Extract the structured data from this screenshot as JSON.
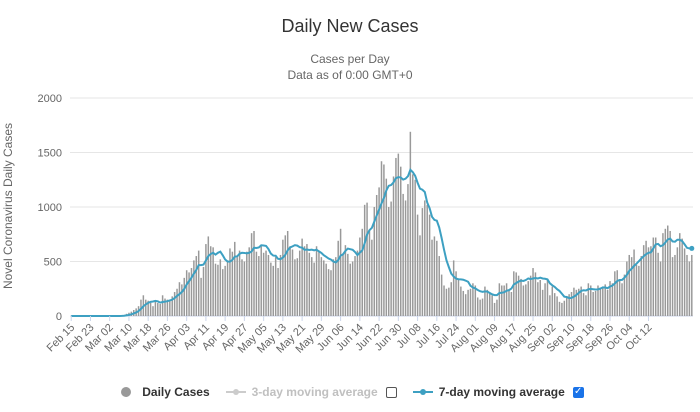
{
  "chart_data": {
    "type": "bar",
    "title": "Daily New Cases",
    "subtitle_line1": "Cases per Day",
    "subtitle_line2": "Data as of 0:00 GMT+0",
    "ylabel": "Novel Coronavirus Daily Cases",
    "xlabel": "",
    "ylim": [
      0,
      2000
    ],
    "yticks": [
      0,
      500,
      1000,
      1500,
      2000
    ],
    "start_date": "Feb 15",
    "x_ticks": [
      "Feb 15",
      "Feb 23",
      "Mar 02",
      "Mar 10",
      "Mar 18",
      "Mar 26",
      "Apr 03",
      "Apr 11",
      "Apr 19",
      "Apr 27",
      "May 05",
      "May 13",
      "May 21",
      "May 29",
      "Jun 06",
      "Jun 14",
      "Jun 22",
      "Jun 30",
      "Jul 08",
      "Jul 16",
      "Jul 24",
      "Aug 01",
      "Aug 09",
      "Aug 17",
      "Aug 25",
      "Sep 02",
      "Sep 10",
      "Sep 18",
      "Sep 26",
      "Oct 04",
      "Oct 12"
    ],
    "series": [
      {
        "name": "Daily Cases",
        "color": "#999999",
        "values": [
          0,
          0,
          0,
          0,
          0,
          0,
          0,
          0,
          0,
          0,
          0,
          0,
          0,
          0,
          0,
          0,
          0,
          0,
          0,
          1,
          2,
          5,
          10,
          20,
          30,
          40,
          55,
          70,
          90,
          150,
          190,
          150,
          140,
          120,
          90,
          130,
          120,
          110,
          190,
          160,
          150,
          140,
          180,
          220,
          250,
          310,
          290,
          350,
          420,
          400,
          440,
          510,
          550,
          600,
          350,
          450,
          660,
          730,
          640,
          630,
          480,
          470,
          520,
          430,
          460,
          510,
          620,
          590,
          680,
          540,
          600,
          520,
          500,
          590,
          630,
          760,
          780,
          590,
          550,
          640,
          580,
          600,
          560,
          490,
          460,
          540,
          440,
          560,
          700,
          740,
          780,
          640,
          610,
          520,
          530,
          600,
          710,
          640,
          660,
          580,
          540,
          490,
          640,
          600,
          540,
          510,
          480,
          430,
          420,
          520,
          540,
          690,
          800,
          560,
          650,
          570,
          480,
          500,
          550,
          600,
          720,
          800,
          1020,
          1040,
          780,
          700,
          1000,
          1110,
          1180,
          1420,
          1390,
          1260,
          1000,
          1050,
          1280,
          1450,
          1490,
          1370,
          1120,
          1060,
          1210,
          1690,
          1300,
          1250,
          930,
          740,
          990,
          1060,
          1020,
          930,
          700,
          730,
          690,
          550,
          380,
          280,
          250,
          260,
          310,
          510,
          410,
          340,
          270,
          230,
          200,
          240,
          250,
          300,
          280,
          170,
          150,
          160,
          270,
          240,
          210,
          190,
          120,
          150,
          300,
          280,
          280,
          300,
          230,
          220,
          410,
          400,
          370,
          340,
          280,
          290,
          320,
          370,
          440,
          400,
          310,
          330,
          240,
          300,
          330,
          190,
          270,
          210,
          180,
          130,
          120,
          140,
          170,
          200,
          220,
          260,
          240,
          250,
          270,
          210,
          190,
          300,
          280,
          220,
          230,
          280,
          260,
          270,
          290,
          240,
          320,
          300,
          410,
          420,
          330,
          300,
          380,
          500,
          560,
          540,
          610,
          470,
          460,
          550,
          650,
          690,
          630,
          640,
          720,
          720,
          580,
          500,
          760,
          800,
          830,
          780,
          540,
          560,
          630,
          760,
          710,
          620,
          560,
          500,
          560
        ]
      },
      {
        "name": "3-day moving average",
        "color": "#cccccc",
        "visible": false
      },
      {
        "name": "7-day moving average",
        "color": "#3da0c2",
        "visible": true
      }
    ],
    "legend_position": "bottom-center"
  },
  "legend": {
    "daily": "Daily Cases",
    "ma3": "3-day moving average",
    "ma7": "7-day moving average"
  },
  "colors": {
    "bar": "#999999",
    "ma7": "#3da0c2",
    "grid": "#e6e6e6",
    "checkbox": "#1a73e8"
  }
}
